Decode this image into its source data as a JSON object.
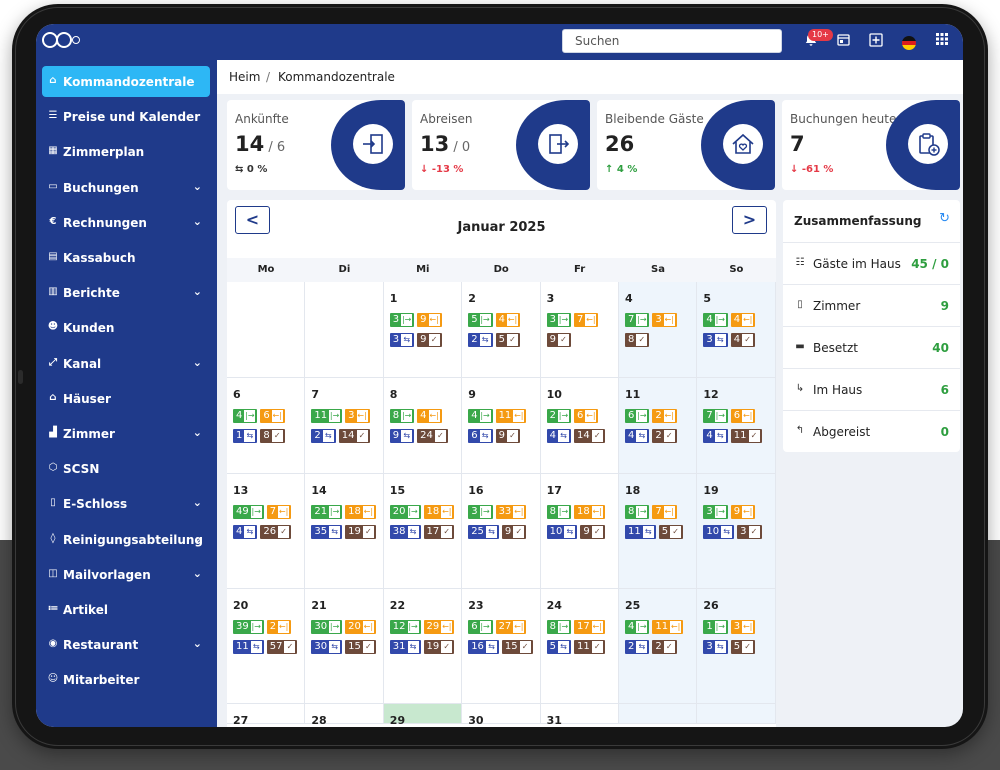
{
  "search": {
    "placeholder": "Suchen"
  },
  "topbar": {
    "notification_badge": "10+"
  },
  "sidebar": {
    "items": [
      {
        "label": "Kommandozentrale",
        "icon": "home-icon",
        "active": true,
        "expandable": false
      },
      {
        "label": "Preise und Kalender",
        "icon": "list-icon",
        "expandable": false
      },
      {
        "label": "Zimmerplan",
        "icon": "grid-icon",
        "expandable": false
      },
      {
        "label": "Buchungen",
        "icon": "monitor-icon",
        "expandable": true
      },
      {
        "label": "Rechnungen",
        "icon": "euro-icon",
        "expandable": true
      },
      {
        "label": "Kassabuch",
        "icon": "briefcase-icon",
        "expandable": false
      },
      {
        "label": "Berichte",
        "icon": "report-icon",
        "expandable": true
      },
      {
        "label": "Kunden",
        "icon": "users-icon",
        "expandable": false
      },
      {
        "label": "Kanal",
        "icon": "channel-icon",
        "expandable": true
      },
      {
        "label": "Häuser",
        "icon": "house-icon",
        "expandable": false
      },
      {
        "label": "Zimmer",
        "icon": "bar-chart-icon",
        "expandable": true
      },
      {
        "label": "SCSN",
        "icon": "cube-icon",
        "expandable": false
      },
      {
        "label": "E-Schloss",
        "icon": "lock-icon",
        "expandable": true
      },
      {
        "label": "Reinigungsabteilung",
        "icon": "drop-icon",
        "expandable": true
      },
      {
        "label": "Mailvorlagen",
        "icon": "book-icon",
        "expandable": true
      },
      {
        "label": "Artikel",
        "icon": "list-bullet-icon",
        "expandable": false
      },
      {
        "label": "Restaurant",
        "icon": "plate-icon",
        "expandable": true
      },
      {
        "label": "Mitarbeiter",
        "icon": "person-icon",
        "expandable": false
      }
    ]
  },
  "breadcrumb": {
    "home": "Heim",
    "separator": "/",
    "current": "Kommandozentrale"
  },
  "stats": [
    {
      "title": "Ankünfte",
      "value": "14",
      "sub": "/ 6",
      "delta_arrow": "⇆",
      "delta": "0 %",
      "delta_color": "#333333",
      "icon": "door-enter-icon"
    },
    {
      "title": "Abreisen",
      "value": "13",
      "sub": "/ 0",
      "delta_arrow": "↓",
      "delta": "-13 %",
      "delta_color": "#e53946",
      "icon": "door-exit-icon"
    },
    {
      "title": "Bleibende Gäste",
      "value": "26",
      "sub": "",
      "delta_arrow": "↑",
      "delta": "4 %",
      "delta_color": "#2e9e3f",
      "icon": "house-heart-icon"
    },
    {
      "title": "Buchungen heute",
      "value": "7",
      "sub": "",
      "delta_arrow": "↓",
      "delta": "-61 %",
      "delta_color": "#e53946",
      "icon": "clipboard-plus-icon"
    }
  ],
  "calendar": {
    "title": "Januar 2025",
    "prev_label": "<",
    "next_label": ">",
    "weekdays": [
      "Mo",
      "Di",
      "Mi",
      "Do",
      "Fr",
      "Sa",
      "So"
    ],
    "chip_colors": {
      "arrival": "#3aa84a",
      "departure": "#f59a12",
      "stay": "#3249ab",
      "booking": "#6d4a3a"
    },
    "chip_symbols": {
      "arrival": "|→",
      "departure": "←|",
      "stay": "⇆",
      "booking": "✓"
    },
    "days": [
      {
        "d": "1",
        "chips": [
          [
            "arrival",
            "3"
          ],
          [
            "departure",
            "9"
          ],
          [
            "stay",
            "3"
          ],
          [
            "booking",
            "9"
          ]
        ]
      },
      {
        "d": "2",
        "chips": [
          [
            "arrival",
            "5"
          ],
          [
            "departure",
            "4"
          ],
          [
            "stay",
            "2"
          ],
          [
            "booking",
            "5"
          ]
        ]
      },
      {
        "d": "3",
        "chips": [
          [
            "arrival",
            "3"
          ],
          [
            "departure",
            "7"
          ],
          [
            "booking",
            "9"
          ]
        ]
      },
      {
        "d": "4",
        "chips": [
          [
            "arrival",
            "7"
          ],
          [
            "departure",
            "3"
          ],
          [
            "booking",
            "8"
          ]
        ]
      },
      {
        "d": "5",
        "chips": [
          [
            "arrival",
            "4"
          ],
          [
            "departure",
            "4"
          ],
          [
            "stay",
            "3"
          ],
          [
            "booking",
            "4"
          ]
        ]
      },
      {
        "d": "6",
        "chips": [
          [
            "arrival",
            "4"
          ],
          [
            "departure",
            "6"
          ],
          [
            "stay",
            "1"
          ],
          [
            "booking",
            "8"
          ]
        ]
      },
      {
        "d": "7",
        "chips": [
          [
            "arrival",
            "11"
          ],
          [
            "departure",
            "3"
          ],
          [
            "stay",
            "2"
          ],
          [
            "booking",
            "14"
          ]
        ]
      },
      {
        "d": "8",
        "chips": [
          [
            "arrival",
            "8"
          ],
          [
            "departure",
            "4"
          ],
          [
            "stay",
            "9"
          ],
          [
            "booking",
            "24"
          ]
        ]
      },
      {
        "d": "9",
        "chips": [
          [
            "arrival",
            "4"
          ],
          [
            "departure",
            "11"
          ],
          [
            "stay",
            "6"
          ],
          [
            "booking",
            "9"
          ]
        ]
      },
      {
        "d": "10",
        "chips": [
          [
            "arrival",
            "2"
          ],
          [
            "departure",
            "6"
          ],
          [
            "stay",
            "4"
          ],
          [
            "booking",
            "14"
          ]
        ]
      },
      {
        "d": "11",
        "chips": [
          [
            "arrival",
            "6"
          ],
          [
            "departure",
            "2"
          ],
          [
            "stay",
            "4"
          ],
          [
            "booking",
            "2"
          ]
        ]
      },
      {
        "d": "12",
        "chips": [
          [
            "arrival",
            "7"
          ],
          [
            "departure",
            "6"
          ],
          [
            "stay",
            "4"
          ],
          [
            "booking",
            "11"
          ]
        ]
      },
      {
        "d": "13",
        "chips": [
          [
            "arrival",
            "49"
          ],
          [
            "departure",
            "7"
          ],
          [
            "stay",
            "4"
          ],
          [
            "booking",
            "26"
          ]
        ]
      },
      {
        "d": "14",
        "chips": [
          [
            "arrival",
            "21"
          ],
          [
            "departure",
            "18"
          ],
          [
            "stay",
            "35"
          ],
          [
            "booking",
            "19"
          ]
        ]
      },
      {
        "d": "15",
        "chips": [
          [
            "arrival",
            "20"
          ],
          [
            "departure",
            "18"
          ],
          [
            "stay",
            "38"
          ],
          [
            "booking",
            "17"
          ]
        ]
      },
      {
        "d": "16",
        "chips": [
          [
            "arrival",
            "3"
          ],
          [
            "departure",
            "33"
          ],
          [
            "stay",
            "25"
          ],
          [
            "booking",
            "9"
          ]
        ]
      },
      {
        "d": "17",
        "chips": [
          [
            "arrival",
            "8"
          ],
          [
            "departure",
            "18"
          ],
          [
            "stay",
            "10"
          ],
          [
            "booking",
            "9"
          ]
        ]
      },
      {
        "d": "18",
        "chips": [
          [
            "arrival",
            "8"
          ],
          [
            "departure",
            "7"
          ],
          [
            "stay",
            "11"
          ],
          [
            "booking",
            "5"
          ]
        ]
      },
      {
        "d": "19",
        "chips": [
          [
            "arrival",
            "3"
          ],
          [
            "departure",
            "9"
          ],
          [
            "stay",
            "10"
          ],
          [
            "booking",
            "3"
          ]
        ]
      },
      {
        "d": "20",
        "chips": [
          [
            "arrival",
            "39"
          ],
          [
            "departure",
            "2"
          ],
          [
            "stay",
            "11"
          ],
          [
            "booking",
            "57"
          ]
        ]
      },
      {
        "d": "21",
        "chips": [
          [
            "arrival",
            "30"
          ],
          [
            "departure",
            "20"
          ],
          [
            "stay",
            "30"
          ],
          [
            "booking",
            "15"
          ]
        ]
      },
      {
        "d": "22",
        "chips": [
          [
            "arrival",
            "12"
          ],
          [
            "departure",
            "29"
          ],
          [
            "stay",
            "31"
          ],
          [
            "booking",
            "19"
          ]
        ]
      },
      {
        "d": "23",
        "chips": [
          [
            "arrival",
            "6"
          ],
          [
            "departure",
            "27"
          ],
          [
            "stay",
            "16"
          ],
          [
            "booking",
            "15"
          ]
        ]
      },
      {
        "d": "24",
        "chips": [
          [
            "arrival",
            "8"
          ],
          [
            "departure",
            "17"
          ],
          [
            "stay",
            "5"
          ],
          [
            "booking",
            "11"
          ]
        ]
      },
      {
        "d": "25",
        "chips": [
          [
            "arrival",
            "4"
          ],
          [
            "departure",
            "11"
          ],
          [
            "stay",
            "2"
          ],
          [
            "booking",
            "2"
          ]
        ]
      },
      {
        "d": "26",
        "chips": [
          [
            "arrival",
            "1"
          ],
          [
            "departure",
            "3"
          ],
          [
            "stay",
            "3"
          ],
          [
            "booking",
            "5"
          ]
        ]
      },
      {
        "d": "27",
        "chips": []
      },
      {
        "d": "28",
        "chips": []
      },
      {
        "d": "29",
        "chips": [],
        "today": true
      },
      {
        "d": "30",
        "chips": []
      },
      {
        "d": "31",
        "chips": []
      }
    ]
  },
  "summary": {
    "title": "Zusammenfassung",
    "rows": [
      {
        "label": "Gäste im Haus",
        "value": "45 / 0",
        "icon": "guests-icon"
      },
      {
        "label": "Zimmer",
        "value": "9",
        "icon": "door-icon"
      },
      {
        "label": "Besetzt",
        "value": "40",
        "icon": "battery-icon"
      },
      {
        "label": "Im Haus",
        "value": "6",
        "icon": "arrow-in-icon"
      },
      {
        "label": "Abgereist",
        "value": "0",
        "icon": "arrow-out-icon"
      }
    ]
  }
}
